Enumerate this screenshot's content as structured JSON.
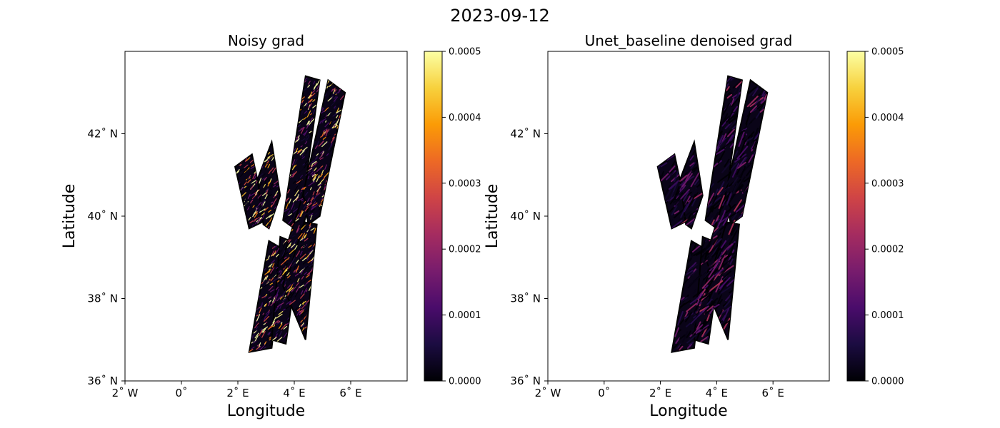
{
  "figure": {
    "suptitle": "2023-09-12"
  },
  "colormap": {
    "name": "inferno",
    "stops": [
      "#000004",
      "#1b0c41",
      "#4a0c6b",
      "#781c6d",
      "#a52c60",
      "#cf4446",
      "#ed6925",
      "#fb9b06",
      "#f7d13d",
      "#fcffa4"
    ]
  },
  "chart_data": [
    {
      "type": "heatmap",
      "title": "Noisy grad",
      "xlabel": "Longitude",
      "ylabel": "Latitude",
      "xlim": [
        -2,
        8
      ],
      "ylim": [
        36,
        44
      ],
      "xticks": [
        -2,
        0,
        2,
        4,
        6
      ],
      "xtick_labels": [
        "2˚ W",
        "0˚",
        "2˚ E",
        "4˚ E",
        "6˚ E"
      ],
      "yticks": [
        36,
        38,
        40,
        42
      ],
      "ytick_labels": [
        "36˚ N",
        "38˚ N",
        "40˚ N",
        "42˚ N"
      ],
      "colorbar": {
        "vmin": 0.0,
        "vmax": 0.0005,
        "ticks": [
          "0.0000",
          "0.0001",
          "0.0002",
          "0.0003",
          "0.0004",
          "0.0005"
        ]
      },
      "noise_level": 0.95,
      "swaths": [
        [
          [
            1.9,
            41.2
          ],
          [
            2.5,
            41.5
          ],
          [
            3.0,
            39.9
          ],
          [
            2.4,
            39.7
          ]
        ],
        [
          [
            2.7,
            40.9
          ],
          [
            3.2,
            41.8
          ],
          [
            3.5,
            40.5
          ],
          [
            3.1,
            39.7
          ],
          [
            2.9,
            39.8
          ]
        ],
        [
          [
            3.6,
            39.9
          ],
          [
            4.4,
            43.4
          ],
          [
            4.9,
            43.3
          ],
          [
            4.3,
            40.3
          ],
          [
            4.0,
            39.7
          ]
        ],
        [
          [
            4.3,
            40.5
          ],
          [
            5.2,
            43.3
          ],
          [
            5.8,
            43.0
          ],
          [
            4.9,
            40.0
          ],
          [
            4.5,
            39.8
          ]
        ],
        [
          [
            2.4,
            36.7
          ],
          [
            3.1,
            39.4
          ],
          [
            3.6,
            39.2
          ],
          [
            3.2,
            36.8
          ]
        ],
        [
          [
            3.2,
            37.0
          ],
          [
            3.5,
            39.5
          ],
          [
            4.2,
            39.3
          ],
          [
            3.7,
            36.9
          ]
        ],
        [
          [
            3.6,
            38.3
          ],
          [
            4.0,
            39.9
          ],
          [
            4.8,
            39.8
          ],
          [
            4.4,
            37.0
          ]
        ],
        [
          [
            3.6,
            39.0
          ],
          [
            4.3,
            40.5
          ],
          [
            4.5,
            40.2
          ],
          [
            3.8,
            38.6
          ]
        ]
      ]
    },
    {
      "type": "heatmap",
      "title": "Unet_baseline denoised grad",
      "xlabel": "Longitude",
      "ylabel": "Latitude",
      "xlim": [
        -2,
        8
      ],
      "ylim": [
        36,
        44
      ],
      "xticks": [
        -2,
        0,
        2,
        4,
        6
      ],
      "xtick_labels": [
        "2˚ W",
        "0˚",
        "2˚ E",
        "4˚ E",
        "6˚ E"
      ],
      "yticks": [
        36,
        38,
        40,
        42
      ],
      "ytick_labels": [
        "36˚ N",
        "38˚ N",
        "40˚ N",
        "42˚ N"
      ],
      "colorbar": {
        "vmin": 0.0,
        "vmax": 0.0005,
        "ticks": [
          "0.0000",
          "0.0001",
          "0.0002",
          "0.0003",
          "0.0004",
          "0.0005"
        ]
      },
      "noise_level": 0.35,
      "swaths": [
        [
          [
            1.9,
            41.2
          ],
          [
            2.5,
            41.5
          ],
          [
            3.0,
            39.9
          ],
          [
            2.4,
            39.7
          ]
        ],
        [
          [
            2.7,
            40.9
          ],
          [
            3.2,
            41.8
          ],
          [
            3.5,
            40.5
          ],
          [
            3.1,
            39.7
          ],
          [
            2.9,
            39.8
          ]
        ],
        [
          [
            3.6,
            39.9
          ],
          [
            4.4,
            43.4
          ],
          [
            4.9,
            43.3
          ],
          [
            4.3,
            40.3
          ],
          [
            4.0,
            39.7
          ]
        ],
        [
          [
            4.3,
            40.5
          ],
          [
            5.2,
            43.3
          ],
          [
            5.8,
            43.0
          ],
          [
            4.9,
            40.0
          ],
          [
            4.5,
            39.8
          ]
        ],
        [
          [
            2.4,
            36.7
          ],
          [
            3.1,
            39.4
          ],
          [
            3.6,
            39.2
          ],
          [
            3.2,
            36.8
          ]
        ],
        [
          [
            3.2,
            37.0
          ],
          [
            3.5,
            39.5
          ],
          [
            4.2,
            39.3
          ],
          [
            3.7,
            36.9
          ]
        ],
        [
          [
            3.6,
            38.3
          ],
          [
            4.0,
            39.9
          ],
          [
            4.8,
            39.8
          ],
          [
            4.4,
            37.0
          ]
        ],
        [
          [
            3.6,
            39.0
          ],
          [
            4.3,
            40.5
          ],
          [
            4.5,
            40.2
          ],
          [
            3.8,
            38.6
          ]
        ]
      ]
    }
  ]
}
